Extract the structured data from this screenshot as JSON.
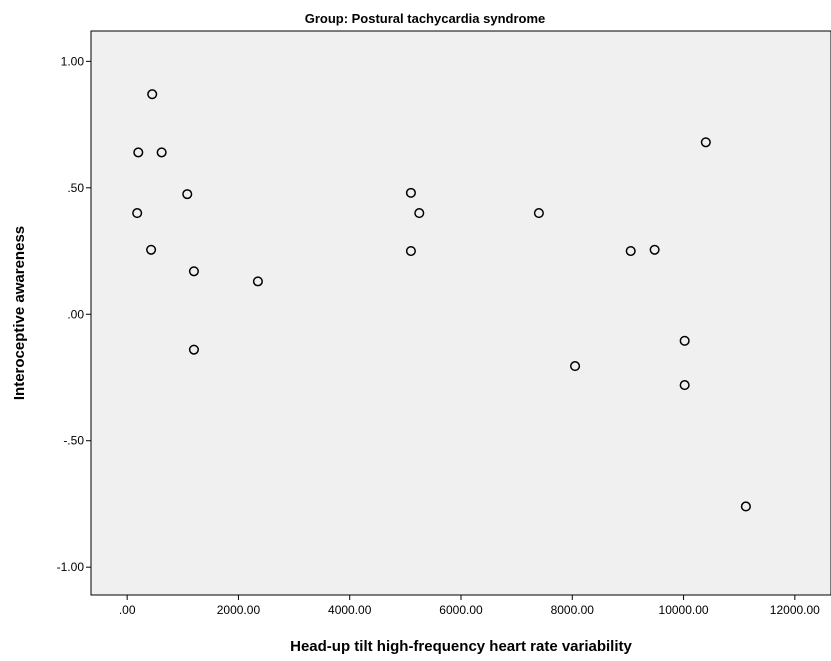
{
  "chart_data": {
    "type": "scatter",
    "title": "Group: Postural tachycardia syndrome",
    "xlabel": "Head-up tilt high-frequency heart rate variability",
    "ylabel": "Interoceptive awareness",
    "xlim": [
      -650,
      12650
    ],
    "ylim": [
      -1.11,
      1.12
    ],
    "x_ticks": [
      0,
      2000,
      4000,
      6000,
      8000,
      10000,
      12000
    ],
    "x_tick_labels": [
      ".00",
      "2000.00",
      "4000.00",
      "6000.00",
      "8000.00",
      "10000.00",
      "12000.00"
    ],
    "y_ticks": [
      1.0,
      0.5,
      0.0,
      -0.5,
      -1.0
    ],
    "y_tick_labels": [
      "1.00",
      ".50",
      ".00",
      "-.50",
      "-1.00"
    ],
    "grid": false,
    "plot_background": "#f0f0f0",
    "marker_color": "#000000",
    "points": [
      {
        "x": 450,
        "y": 0.87
      },
      {
        "x": 200,
        "y": 0.64
      },
      {
        "x": 620,
        "y": 0.64
      },
      {
        "x": 1080,
        "y": 0.475
      },
      {
        "x": 180,
        "y": 0.4
      },
      {
        "x": 430,
        "y": 0.255
      },
      {
        "x": 1200,
        "y": 0.17
      },
      {
        "x": 2350,
        "y": 0.13
      },
      {
        "x": 1200,
        "y": -0.14
      },
      {
        "x": 5100,
        "y": 0.48
      },
      {
        "x": 5250,
        "y": 0.4
      },
      {
        "x": 5100,
        "y": 0.25
      },
      {
        "x": 7400,
        "y": 0.4
      },
      {
        "x": 8050,
        "y": -0.205
      },
      {
        "x": 9050,
        "y": 0.25
      },
      {
        "x": 9480,
        "y": 0.255
      },
      {
        "x": 10400,
        "y": 0.68
      },
      {
        "x": 10020,
        "y": -0.105
      },
      {
        "x": 10020,
        "y": -0.28
      },
      {
        "x": 11120,
        "y": -0.76
      }
    ]
  }
}
